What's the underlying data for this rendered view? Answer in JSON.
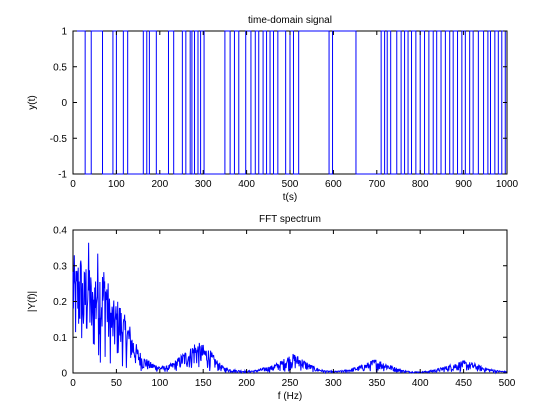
{
  "chart_data": [
    {
      "type": "line",
      "title": "time-domain signal",
      "xlabel": "t(s)",
      "ylabel": "y(t)",
      "xlim": [
        0,
        1000
      ],
      "ylim": [
        -1,
        1
      ],
      "xticks": [
        0,
        100,
        200,
        300,
        400,
        500,
        600,
        700,
        800,
        900,
        1000
      ],
      "xtick_labels": [
        "0",
        "100",
        "200",
        "300",
        "400",
        "500",
        "600",
        "700",
        "800",
        "900",
        "1000"
      ],
      "yticks": [
        -1,
        -0.5,
        0,
        0.5,
        1
      ],
      "ytick_labels": [
        "-1",
        "-0.5",
        "0",
        "0.5",
        "1"
      ],
      "grid": false,
      "series": [
        {
          "color": "#0000ff",
          "style": "square-wave",
          "initial": 1,
          "transitions": [
            28,
            42,
            68,
            92,
            100,
            116,
            126,
            162,
            170,
            176,
            192,
            220,
            232,
            252,
            260,
            270,
            274,
            280,
            288,
            294,
            302,
            350,
            362,
            372,
            382,
            398,
            410,
            420,
            428,
            438,
            446,
            454,
            462,
            472,
            490,
            500,
            508,
            520,
            590,
            598,
            652,
            710,
            718,
            724,
            732,
            746,
            756,
            764,
            772,
            780,
            790,
            800,
            810,
            820,
            830,
            838,
            848,
            858,
            868,
            876,
            886,
            896,
            904,
            914,
            922,
            934,
            946,
            956,
            962,
            972,
            980,
            988,
            996
          ]
        }
      ]
    },
    {
      "type": "line",
      "title": "FFT spectrum",
      "xlabel": "f (Hz)",
      "ylabel": "|Y(f)|",
      "xlim": [
        0,
        500
      ],
      "ylim": [
        0,
        0.4
      ],
      "xticks": [
        0,
        50,
        100,
        150,
        200,
        250,
        300,
        350,
        400,
        450,
        500
      ],
      "xtick_labels": [
        "0",
        "50",
        "100",
        "150",
        "200",
        "250",
        "300",
        "350",
        "400",
        "450",
        "500"
      ],
      "yticks": [
        0,
        0.1,
        0.2,
        0.3,
        0.4
      ],
      "ytick_labels": [
        "0",
        "0.1",
        "0.2",
        "0.3",
        "0.4"
      ],
      "grid": false,
      "series": [
        {
          "color": "#0000ff",
          "x_step": 0.5,
          "envelope": [
            [
              0,
              0.36
            ],
            [
              3,
              0.3
            ],
            [
              8,
              0.36
            ],
            [
              12,
              0.28
            ],
            [
              18,
              0.37
            ],
            [
              22,
              0.24
            ],
            [
              28,
              0.35
            ],
            [
              33,
              0.3
            ],
            [
              38,
              0.32
            ],
            [
              42,
              0.22
            ],
            [
              48,
              0.2
            ],
            [
              53,
              0.21
            ],
            [
              58,
              0.17
            ],
            [
              65,
              0.14
            ],
            [
              70,
              0.1
            ],
            [
              75,
              0.07
            ],
            [
              80,
              0.05
            ],
            [
              85,
              0.04
            ],
            [
              90,
              0.03
            ],
            [
              95,
              0.025
            ],
            [
              100,
              0.02
            ],
            [
              108,
              0.02
            ],
            [
              115,
              0.03
            ],
            [
              122,
              0.045
            ],
            [
              128,
              0.06
            ],
            [
              135,
              0.07
            ],
            [
              140,
              0.09
            ],
            [
              145,
              0.085
            ],
            [
              150,
              0.08
            ],
            [
              158,
              0.065
            ],
            [
              165,
              0.04
            ],
            [
              172,
              0.02
            ],
            [
              180,
              0.012
            ],
            [
              190,
              0.008
            ],
            [
              200,
              0.006
            ],
            [
              210,
              0.008
            ],
            [
              220,
              0.015
            ],
            [
              230,
              0.022
            ],
            [
              240,
              0.035
            ],
            [
              248,
              0.05
            ],
            [
              255,
              0.055
            ],
            [
              262,
              0.045
            ],
            [
              270,
              0.03
            ],
            [
              280,
              0.015
            ],
            [
              290,
              0.007
            ],
            [
              300,
              0.005
            ],
            [
              310,
              0.007
            ],
            [
              320,
              0.012
            ],
            [
              330,
              0.02
            ],
            [
              340,
              0.03
            ],
            [
              348,
              0.04
            ],
            [
              355,
              0.035
            ],
            [
              362,
              0.028
            ],
            [
              370,
              0.018
            ],
            [
              380,
              0.008
            ],
            [
              390,
              0.004
            ],
            [
              400,
              0.004
            ],
            [
              410,
              0.006
            ],
            [
              420,
              0.012
            ],
            [
              430,
              0.02
            ],
            [
              440,
              0.028
            ],
            [
              448,
              0.035
            ],
            [
              455,
              0.032
            ],
            [
              462,
              0.028
            ],
            [
              470,
              0.02
            ],
            [
              480,
              0.012
            ],
            [
              490,
              0.007
            ],
            [
              500,
              0.004
            ]
          ]
        }
      ]
    }
  ]
}
